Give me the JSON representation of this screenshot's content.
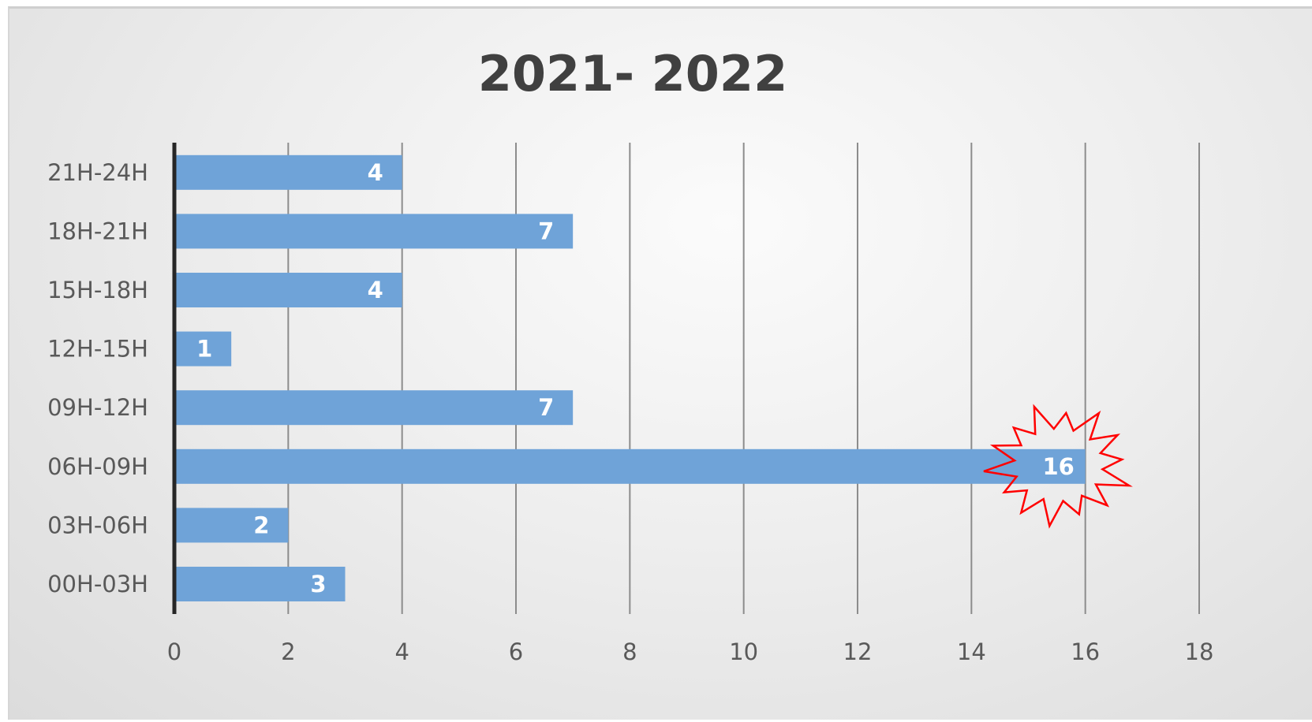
{
  "chart_data": {
    "type": "bar",
    "orientation": "horizontal",
    "title": "2021- 2022",
    "categories": [
      "00H-03H",
      "03H-06H",
      "06H-09H",
      "09H-12H",
      "12H-15H",
      "15H-18H",
      "18H-21H",
      "21H-24H"
    ],
    "values": [
      3,
      2,
      16,
      7,
      1,
      4,
      7,
      4
    ],
    "xlim": [
      0,
      18
    ],
    "x_ticks": [
      0,
      2,
      4,
      6,
      8,
      10,
      12,
      14,
      16,
      18
    ],
    "grid": "vertical",
    "legend": "none",
    "highlight": {
      "category": "06H-09H",
      "shape": "starburst-outline"
    }
  },
  "colors": {
    "bar": "#6fa3d8",
    "highlight_outline": "#ff0000",
    "gridline": "#8c8c8c",
    "axis": "#262626"
  }
}
